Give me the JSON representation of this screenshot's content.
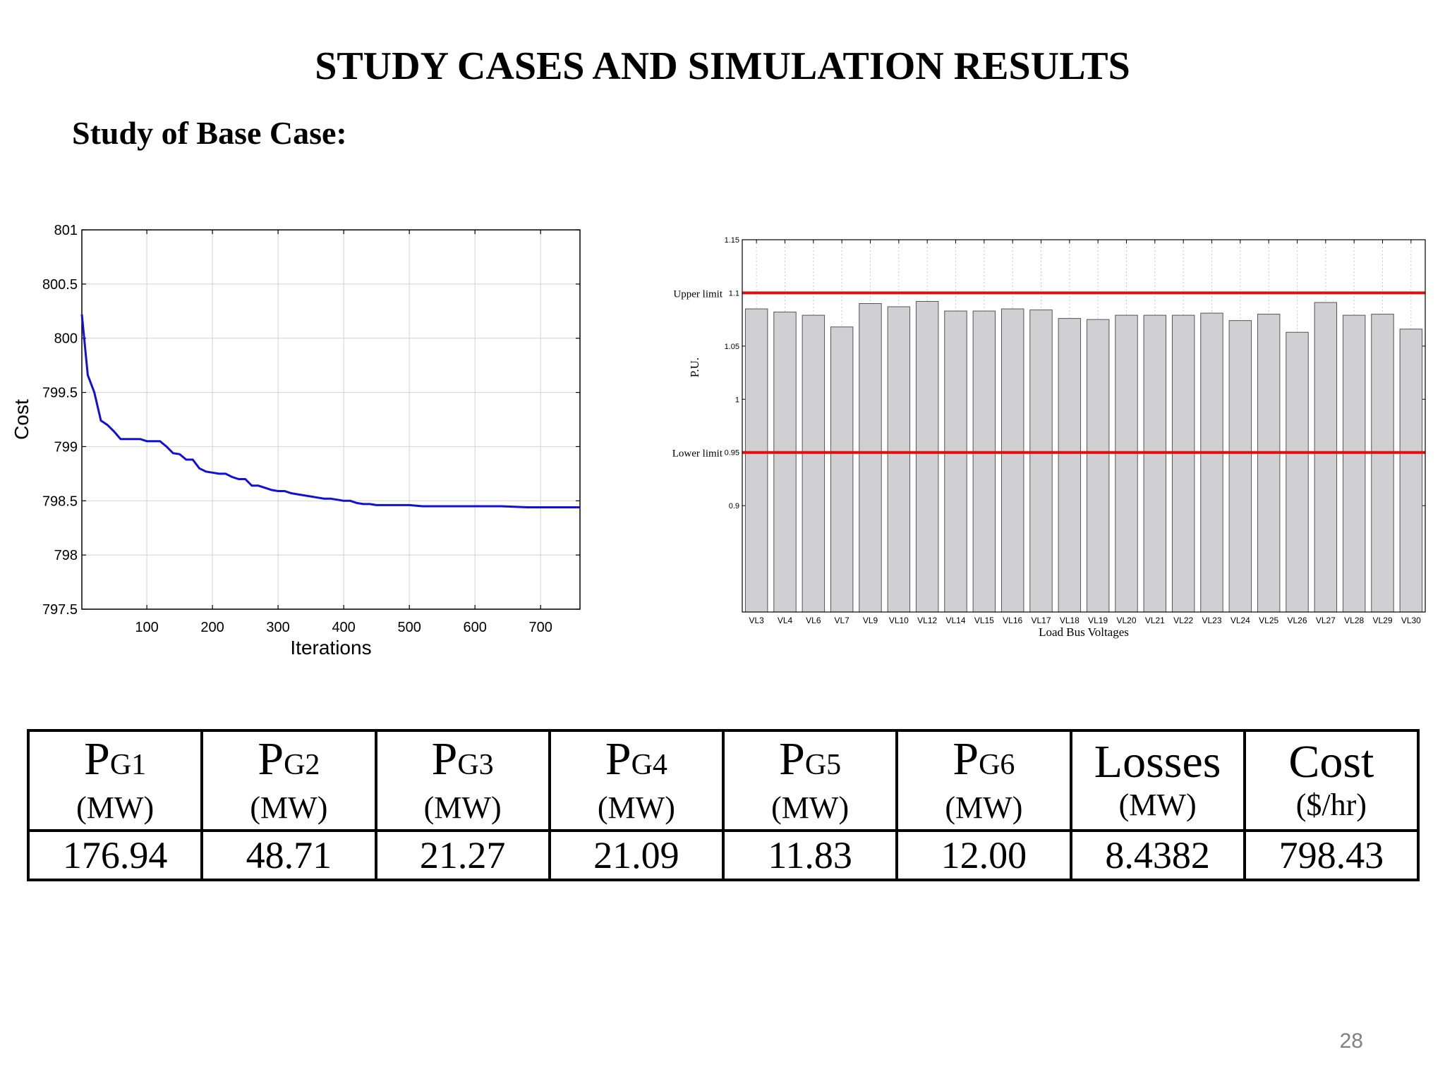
{
  "title": "STUDY CASES AND SIMULATION RESULTS",
  "section": "Study of Base Case:",
  "chart_data": [
    {
      "type": "line",
      "title": "",
      "xlabel": "Iterations",
      "ylabel": "Cost",
      "xlim": [
        1,
        760
      ],
      "ylim": [
        797.5,
        801
      ],
      "xticks": [
        100,
        200,
        300,
        400,
        500,
        600,
        700
      ],
      "yticks": [
        797.5,
        798,
        798.5,
        799,
        799.5,
        800,
        800.5,
        801
      ],
      "grid": true,
      "line_color": "#1010d8",
      "series": [
        {
          "x": [
            1,
            10,
            20,
            30,
            40,
            50,
            60,
            70,
            80,
            90,
            100,
            110,
            120,
            130,
            140,
            150,
            160,
            170,
            180,
            190,
            200,
            210,
            220,
            230,
            240,
            250,
            260,
            270,
            280,
            290,
            300,
            310,
            320,
            330,
            340,
            350,
            360,
            370,
            380,
            390,
            400,
            410,
            420,
            430,
            440,
            450,
            460,
            480,
            500,
            520,
            540,
            560,
            600,
            640,
            680,
            700,
            720,
            760
          ],
          "y": [
            800.22,
            799.66,
            799.5,
            799.24,
            799.2,
            799.14,
            799.07,
            799.07,
            799.07,
            799.07,
            799.05,
            799.05,
            799.05,
            799.0,
            798.94,
            798.93,
            798.88,
            798.88,
            798.8,
            798.77,
            798.76,
            798.75,
            798.75,
            798.72,
            798.7,
            798.7,
            798.64,
            798.64,
            798.62,
            798.6,
            798.59,
            798.59,
            798.57,
            798.56,
            798.55,
            798.54,
            798.53,
            798.52,
            798.52,
            798.51,
            798.5,
            798.5,
            798.48,
            798.47,
            798.47,
            798.46,
            798.46,
            798.46,
            798.46,
            798.45,
            798.45,
            798.45,
            798.45,
            798.45,
            798.44,
            798.44,
            798.44,
            798.44
          ]
        }
      ]
    },
    {
      "type": "bar",
      "title": "",
      "xlabel": "Load Bus Voltages",
      "ylabel": "P.U.",
      "ylim": [
        0.8,
        1.15
      ],
      "yticks": [
        0.9,
        0.95,
        1,
        1.05,
        1.1,
        1.15
      ],
      "grid": true,
      "bar_color": "#d0cfd2",
      "categories": [
        "VL3",
        "VL4",
        "VL6",
        "VL7",
        "VL9",
        "VL10",
        "VL12",
        "VL14",
        "VL15",
        "VL16",
        "VL17",
        "VL18",
        "VL19",
        "VL20",
        "VL21",
        "VL22",
        "VL23",
        "VL24",
        "VL25",
        "VL26",
        "VL27",
        "VL28",
        "VL29",
        "VL30"
      ],
      "values": [
        1.085,
        1.082,
        1.079,
        1.068,
        1.09,
        1.087,
        1.092,
        1.083,
        1.083,
        1.085,
        1.084,
        1.076,
        1.075,
        1.079,
        1.079,
        1.079,
        1.081,
        1.074,
        1.08,
        1.063,
        1.091,
        1.079,
        1.08,
        1.066
      ],
      "limits": [
        {
          "label": "Upper limit",
          "value": 1.1,
          "color": "#e01010"
        },
        {
          "label": "Lower limit",
          "value": 0.95,
          "color": "#e01010"
        }
      ]
    }
  ],
  "table": {
    "headers": [
      {
        "main": "P",
        "sub": "G1",
        "unit": "(MW)"
      },
      {
        "main": "P",
        "sub": "G2",
        "unit": "(MW)"
      },
      {
        "main": "P",
        "sub": "G3",
        "unit": "(MW)"
      },
      {
        "main": "P",
        "sub": "G4",
        "unit": "(MW)"
      },
      {
        "main": "P",
        "sub": "G5",
        "unit": "(MW)"
      },
      {
        "main": "P",
        "sub": "G6",
        "unit": "(MW)"
      },
      {
        "main": "Losses",
        "sub": "",
        "unit": "(MW)"
      },
      {
        "main": "Cost",
        "sub": "",
        "unit": "($/hr)"
      }
    ],
    "values": [
      "176.94",
      "48.71",
      "21.27",
      "21.09",
      "11.83",
      "12.00",
      "8.4382",
      "798.43"
    ]
  },
  "page_number": "28"
}
